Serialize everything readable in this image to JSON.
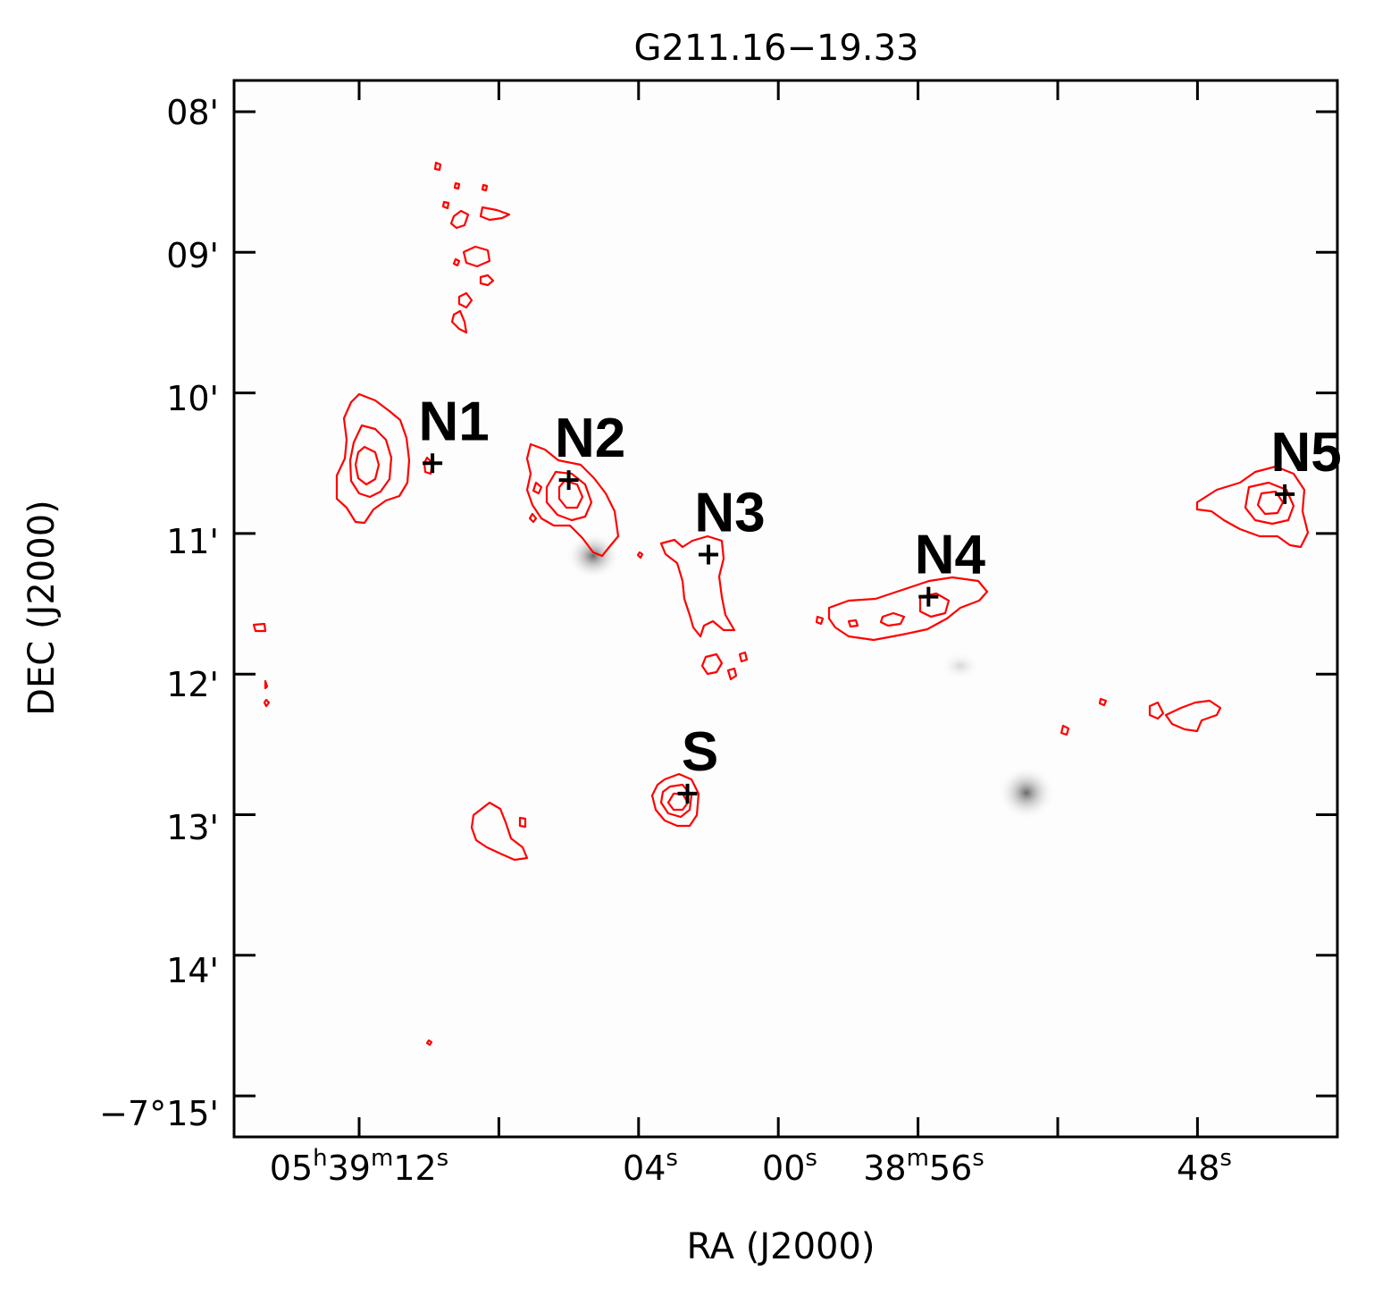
{
  "chart_data": {
    "type": "contour_map",
    "title": "G211.16−19.33",
    "xlabel": "RA (J2000)",
    "ylabel": "DEC (J2000)",
    "x_ticks": [
      {
        "h": "05",
        "m": "39",
        "s": "12"
      },
      {
        "s": "04"
      },
      {
        "s": "00"
      },
      {
        "m": "38",
        "s": "56"
      },
      {
        "s": "48"
      }
    ],
    "y_ticks": [
      "08'",
      "09'",
      "10'",
      "11'",
      "12'",
      "13'",
      "14'",
      "−7°15'"
    ],
    "sources": [
      {
        "name": "N1",
        "ra_s": 69.9,
        "dec_min": 10.5
      },
      {
        "name": "N2",
        "ra_s": 66.0,
        "dec_min": 10.62
      },
      {
        "name": "N3",
        "ra_s": 62.0,
        "dec_min": 11.15
      },
      {
        "name": "N4",
        "ra_s": 55.7,
        "dec_min": 11.45
      },
      {
        "name": "N5",
        "ra_s": 45.5,
        "dec_min": 10.72
      },
      {
        "name": "S",
        "ra_s": 62.6,
        "dec_min": 12.85
      }
    ],
    "contour_color": "#ff0000",
    "marker_color": "#000000"
  }
}
